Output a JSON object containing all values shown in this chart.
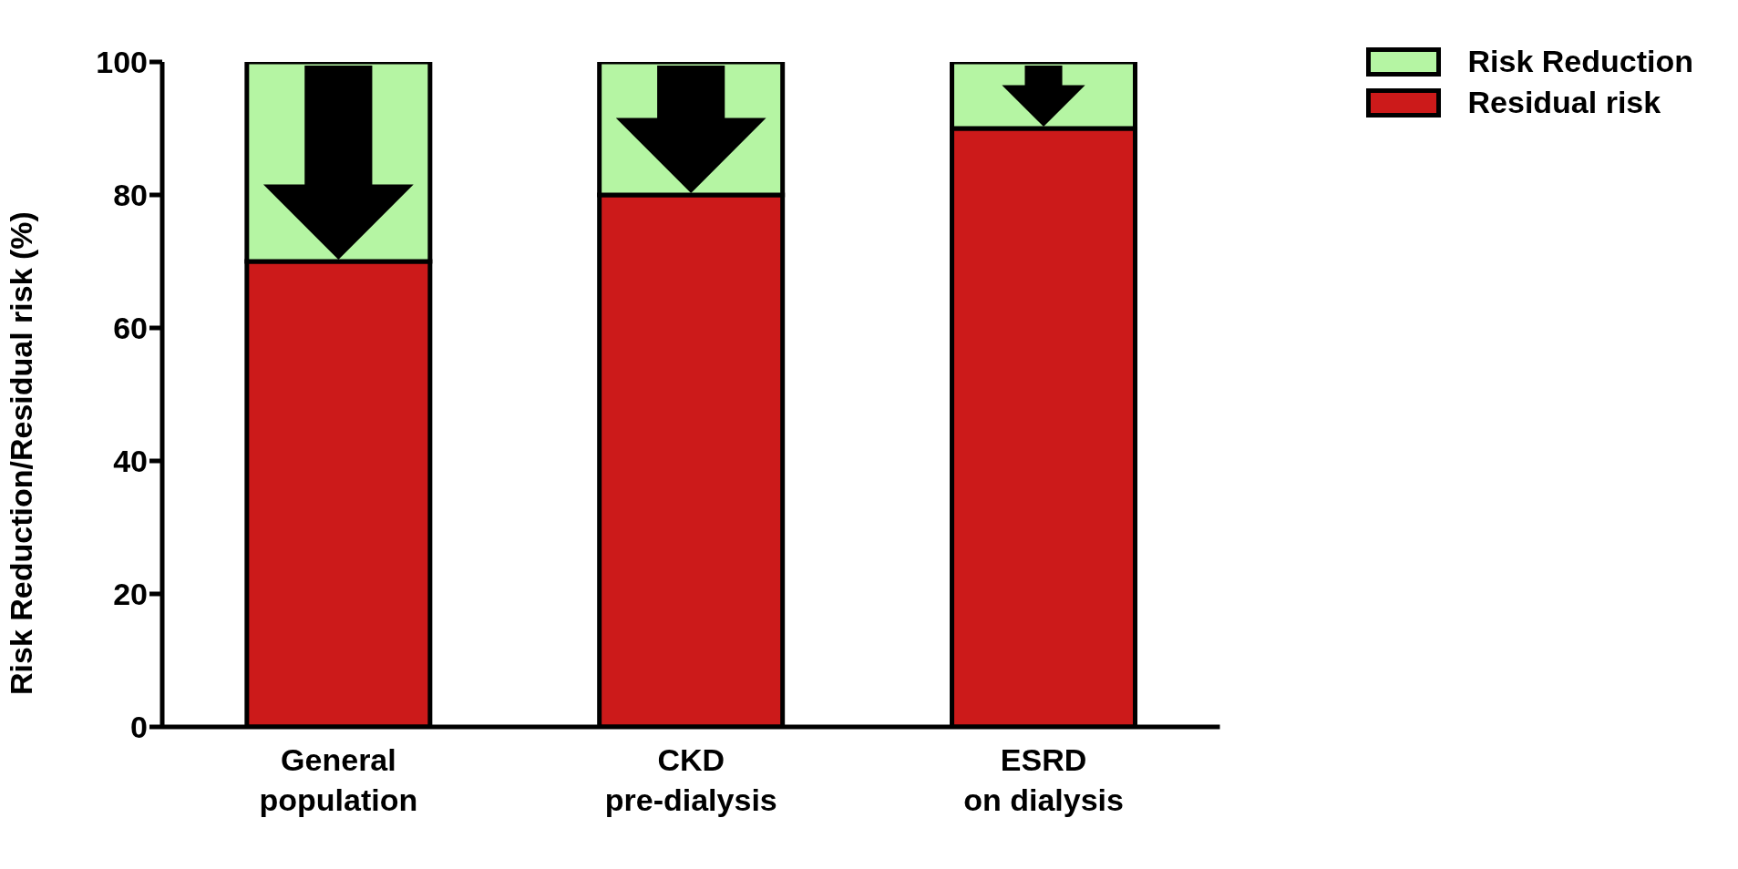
{
  "chart_data": {
    "type": "bar",
    "stacked": true,
    "ylabel": "Risk Reduction/Residual risk (%)",
    "categories": [
      "General population",
      "CKD pre-dialysis",
      "ESRD on dialysis"
    ],
    "series": [
      {
        "name": "Residual risk",
        "color": "#cc1a1a",
        "values": [
          70,
          80,
          90
        ]
      },
      {
        "name": "Risk Reduction",
        "color": "#b5f5a3",
        "values": [
          30,
          20,
          10
        ]
      }
    ],
    "ylim": [
      0,
      100
    ],
    "yticks": [
      0,
      20,
      40,
      60,
      80,
      100
    ],
    "grid": false,
    "legend": "top right"
  }
}
